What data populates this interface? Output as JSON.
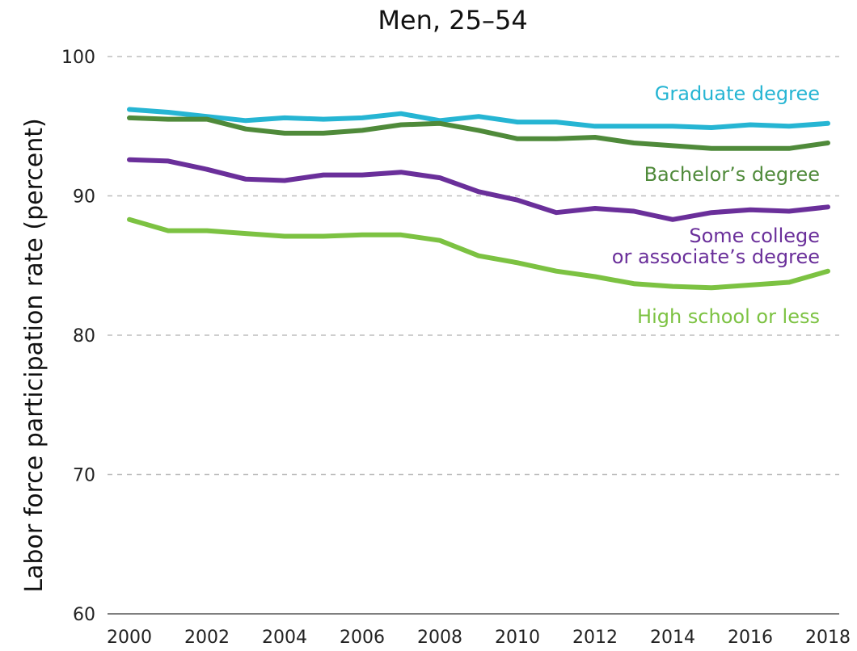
{
  "chart_data": {
    "type": "line",
    "title": "Men, 25–54",
    "ylabel": "Labor force participation rate (percent)",
    "xlabel": "",
    "x": [
      2000,
      2001,
      2002,
      2003,
      2004,
      2005,
      2006,
      2007,
      2008,
      2009,
      2010,
      2011,
      2012,
      2013,
      2014,
      2015,
      2016,
      2017,
      2018
    ],
    "xticks": [
      "2000",
      "2002",
      "2004",
      "2006",
      "2008",
      "2010",
      "2012",
      "2014",
      "2016",
      "2018"
    ],
    "yticks": [
      "60",
      "70",
      "80",
      "90",
      "100"
    ],
    "ylim": [
      60,
      100
    ],
    "grid": "horizontal-dashed",
    "series": [
      {
        "name": "Graduate degree",
        "color": "#26b5d3",
        "label_lines": [
          "Graduate degree"
        ],
        "values": [
          96.2,
          96.0,
          95.7,
          95.4,
          95.6,
          95.5,
          95.6,
          95.9,
          95.4,
          95.7,
          95.3,
          95.3,
          95.0,
          95.0,
          95.0,
          94.9,
          95.1,
          95.0,
          95.2
        ]
      },
      {
        "name": "Bachelor's degree",
        "color": "#4f8a3a",
        "label_lines": [
          "Bachelor’s degree"
        ],
        "values": [
          95.6,
          95.5,
          95.5,
          94.8,
          94.5,
          94.5,
          94.7,
          95.1,
          95.2,
          94.7,
          94.1,
          94.1,
          94.2,
          93.8,
          93.6,
          93.4,
          93.4,
          93.4,
          93.8
        ]
      },
      {
        "name": "Some college or associate's degree",
        "color": "#6a2f9a",
        "label_lines": [
          "Some college",
          "or associate’s degree"
        ],
        "values": [
          92.6,
          92.5,
          91.9,
          91.2,
          91.1,
          91.5,
          91.5,
          91.7,
          91.3,
          90.3,
          89.7,
          88.8,
          89.1,
          88.9,
          88.3,
          88.8,
          89.0,
          88.9,
          89.2
        ]
      },
      {
        "name": "High school or less",
        "color": "#7cc242",
        "label_lines": [
          "High school or less"
        ],
        "values": [
          88.3,
          87.5,
          87.5,
          87.3,
          87.1,
          87.1,
          87.2,
          87.2,
          86.8,
          85.7,
          85.2,
          84.6,
          84.2,
          83.7,
          83.5,
          83.4,
          83.6,
          83.8,
          84.6
        ]
      }
    ]
  }
}
